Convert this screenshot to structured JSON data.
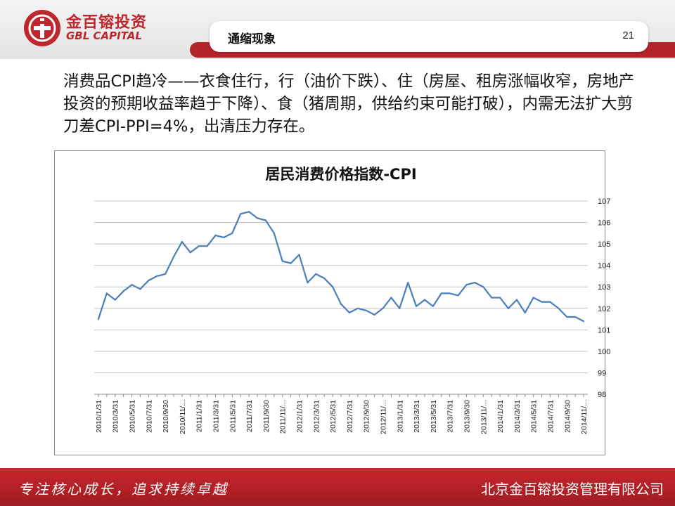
{
  "logo": {
    "cn": "金百镕投资",
    "en": "GBL CAPITAL"
  },
  "header": {
    "title": "通缩现象",
    "page_number": "21"
  },
  "body": {
    "text": "消费品CPI趋冷——衣食住行，行（油价下跌）、住（房屋、租房涨幅收窄，房地产投资的预期收益率趋于下降）、食（猪周期，供给约束可能打破），内需无法扩大剪刀差CPI-PPI=4%，出清压力存在。"
  },
  "footer": {
    "slogan": "专注核心成长，追求持续卓越",
    "company": "北京金百镕投资管理有限公司"
  },
  "colors": {
    "brand_red": "#b3242a",
    "line": "#4a7ebb"
  },
  "chart_data": {
    "type": "line",
    "title": "居民消费价格指数-CPI",
    "xlabel": "",
    "ylabel": "",
    "ylim": [
      98,
      107
    ],
    "yticks": [
      98,
      99,
      100,
      101,
      102,
      103,
      104,
      105,
      106,
      107
    ],
    "grid": true,
    "y_axis_position": "right",
    "legend": "none",
    "x": [
      "2010/1/31",
      "2010/2/28",
      "2010/3/31",
      "2010/4/30",
      "2010/5/31",
      "2010/6/30",
      "2010/7/31",
      "2010/8/31",
      "2010/9/30",
      "2010/10/31",
      "2010/11/...",
      "2010/12/31",
      "2011/1/31",
      "2011/2/28",
      "2011/3/31",
      "2011/4/30",
      "2011/5/31",
      "2011/6/30",
      "2011/7/31",
      "2011/8/31",
      "2011/9/30",
      "2011/10/31",
      "2011/11/...",
      "2011/12/31",
      "2012/1/31",
      "2012/2/29",
      "2012/3/31",
      "2012/4/30",
      "2012/5/31",
      "2012/6/30",
      "2012/7/31",
      "2012/8/31",
      "2012/9/30",
      "2012/10/31",
      "2012/11/...",
      "2012/12/31",
      "2013/1/31",
      "2013/2/28",
      "2013/3/31",
      "2013/4/30",
      "2013/5/31",
      "2013/6/30",
      "2013/7/31",
      "2013/8/31",
      "2013/9/30",
      "2013/10/31",
      "2013/11/...",
      "2013/12/31",
      "2014/1/31",
      "2014/2/28",
      "2014/3/31",
      "2014/4/30",
      "2014/5/31",
      "2014/6/30",
      "2014/7/31",
      "2014/8/31",
      "2014/9/30",
      "2014/10/31",
      "2014/11/..."
    ],
    "x_tick_labels": [
      "2010/1/31",
      "2010/3/31",
      "2010/5/31",
      "2010/7/31",
      "2010/9/30",
      "2010/11/...",
      "2011/1/31",
      "2011/3/31",
      "2011/5/31",
      "2011/7/31",
      "2011/9/30",
      "2011/11/...",
      "2012/1/31",
      "2012/3/31",
      "2012/5/31",
      "2012/7/31",
      "2012/9/30",
      "2012/11/...",
      "2013/1/31",
      "2013/3/31",
      "2013/5/31",
      "2013/7/31",
      "2013/9/30",
      "2013/11/...",
      "2014/1/31",
      "2014/3/31",
      "2014/5/31",
      "2014/7/31",
      "2014/9/30",
      "2014/11/..."
    ],
    "series": [
      {
        "values": [
          101.5,
          102.7,
          102.4,
          102.8,
          103.1,
          102.9,
          103.3,
          103.5,
          103.6,
          104.4,
          105.1,
          104.6,
          104.9,
          104.9,
          105.4,
          105.3,
          105.5,
          106.4,
          106.5,
          106.2,
          106.1,
          105.5,
          104.2,
          104.1,
          104.5,
          103.2,
          103.6,
          103.4,
          103.0,
          102.2,
          101.8,
          102.0,
          101.9,
          101.7,
          102.0,
          102.5,
          102.0,
          103.2,
          102.1,
          102.4,
          102.1,
          102.7,
          102.7,
          102.6,
          103.1,
          103.2,
          103.0,
          102.5,
          102.5,
          102.0,
          102.4,
          101.8,
          102.5,
          102.3,
          102.3,
          102.0,
          101.6,
          101.6,
          101.4
        ]
      }
    ]
  }
}
